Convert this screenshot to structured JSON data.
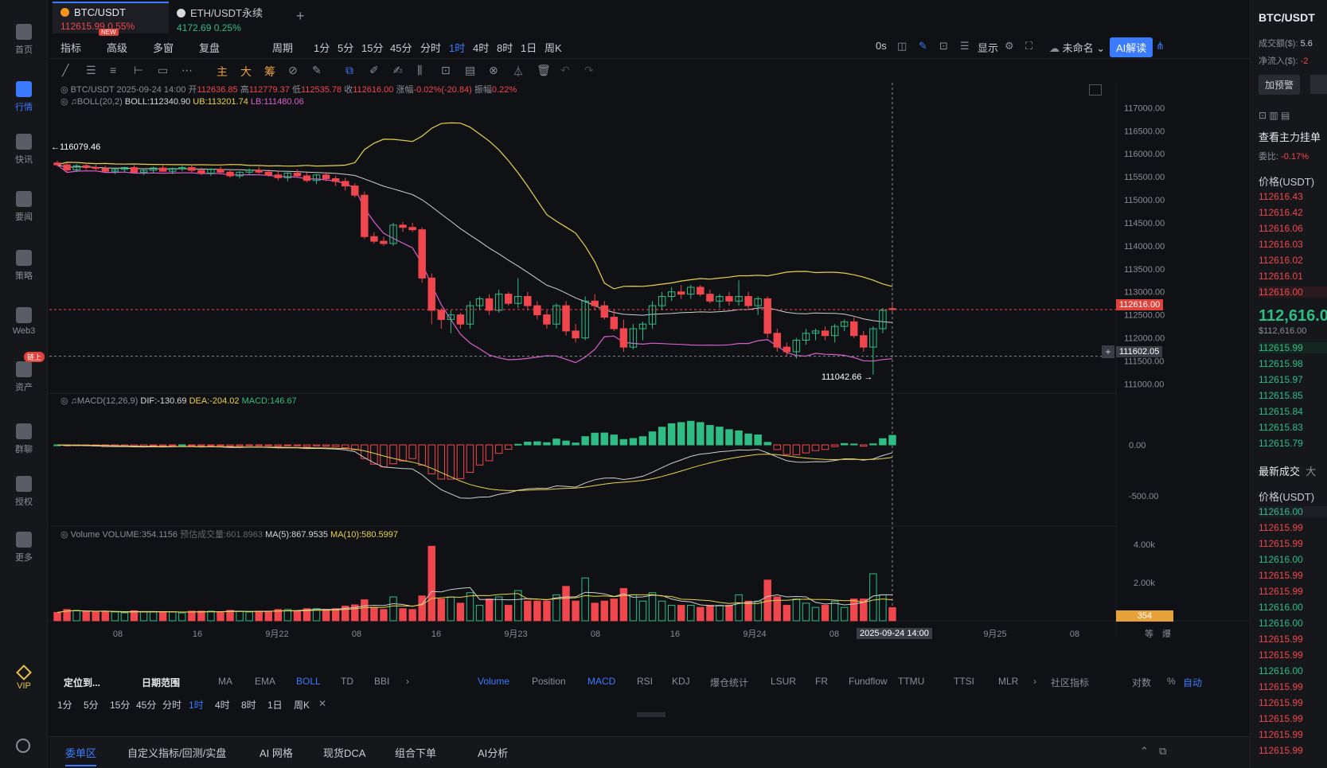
{
  "leftnav": [
    {
      "label": "首页",
      "icon": "chart-circle-icon"
    },
    {
      "label": "行情",
      "icon": "bar-chart-icon",
      "active": true
    },
    {
      "label": "快讯",
      "icon": "news-icon"
    },
    {
      "label": "要闻",
      "icon": "document-icon"
    },
    {
      "label": "策略",
      "icon": "robot-icon"
    },
    {
      "label": "Web3",
      "icon": "web3-icon"
    },
    {
      "label": "资产",
      "icon": "wallet-icon",
      "badge": "链上"
    },
    {
      "label": "群聊",
      "icon": "chat-icon"
    },
    {
      "label": "授权",
      "icon": "key-icon"
    },
    {
      "label": "更多",
      "icon": "grid-icon"
    }
  ],
  "vip_label": "VIP",
  "tabs": [
    {
      "name": "BTC/USDT",
      "price": "112615.99",
      "change": "0.55%",
      "badge": "NEW"
    },
    {
      "name": "ETH/USDT永续",
      "price": "4172.69",
      "change": "0.25%"
    }
  ],
  "toolbar1": [
    "指标",
    "高级",
    "多窗",
    "复盘",
    "周期",
    "1分",
    "5分",
    "15分",
    "45分",
    "分时",
    "1时",
    "4时",
    "8时",
    "1日",
    "周K"
  ],
  "toolbar1_active": "1时",
  "toolbar1_right": {
    "delay": "0s",
    "display": "显示",
    "unnamed": "未命名",
    "ai": "AI解读"
  },
  "toolbar2": [
    "主",
    "大",
    "筹"
  ],
  "info": {
    "pair": "BTC/USDT",
    "datetime": "2025-09-24 14:00",
    "open_label": "开",
    "open": "112636.85",
    "high_label": "高",
    "high": "112779.37",
    "low_label": "低",
    "low": "112535.78",
    "close_label": "收",
    "close": "112616.00",
    "chg_label": "涨幅",
    "chg": "-0.02%(-20.84)",
    "amp_label": "振幅",
    "amp": "0.22%",
    "boll_label": "BOLL(20,2)",
    "boll": "BOLL:112340.90",
    "ub": "UB:113201.74",
    "lb": "LB:111480.06",
    "macd_label": "MACD(12,26,9)",
    "dif": "DIF:-130.69",
    "dea": "DEA:-204.02",
    "macd": "MACD:146.67",
    "vol_label": "Volume",
    "vol": "VOLUME:354.1156",
    "vol_est": "预估成交量:601.8963",
    "ma5": "MA(5):867.9535",
    "ma10": "MA(10):580.5997"
  },
  "markers": {
    "high": "116079.46",
    "low": "111042.66",
    "last_price": "112616.00",
    "cross_price": "111602.05",
    "vol_last": "354",
    "time_cursor": "2025-09-24 14:00"
  },
  "price_axis": [
    "117000.00",
    "116500.00",
    "116000.00",
    "115500.00",
    "115000.00",
    "114500.00",
    "114000.00",
    "113500.00",
    "113000.00",
    "112500.00",
    "112000.00",
    "111500.00",
    "111000.00"
  ],
  "macd_axis": [
    "0.00",
    "-500.00"
  ],
  "vol_axis": [
    "4.00k",
    "2.00k"
  ],
  "time_axis": [
    "08",
    "16",
    "9月22",
    "08",
    "16",
    "9月23",
    "08",
    "16",
    "9月24",
    "08",
    "9月25",
    "08"
  ],
  "time_axis_right": [
    "等",
    "爆"
  ],
  "chart_data": {
    "type": "candlestick",
    "interval": "1时",
    "ylim": [
      110800,
      117300
    ],
    "candles": [
      [
        115800,
        115850,
        115720,
        115760
      ],
      [
        115760,
        115800,
        115600,
        115650
      ],
      [
        115650,
        115780,
        115600,
        115740
      ],
      [
        115740,
        115800,
        115650,
        115700
      ],
      [
        115700,
        115760,
        115620,
        115680
      ],
      [
        115680,
        115740,
        115600,
        115620
      ],
      [
        115620,
        115700,
        115560,
        115660
      ],
      [
        115660,
        115720,
        115600,
        115700
      ],
      [
        115700,
        115750,
        115580,
        115600
      ],
      [
        115600,
        115680,
        115540,
        115640
      ],
      [
        115640,
        115720,
        115580,
        115690
      ],
      [
        115690,
        115750,
        115600,
        115620
      ],
      [
        115620,
        115700,
        115560,
        115680
      ],
      [
        115680,
        115740,
        115620,
        115700
      ],
      [
        115700,
        115760,
        115600,
        115640
      ],
      [
        115640,
        115700,
        115540,
        115580
      ],
      [
        115580,
        115680,
        115520,
        115660
      ],
      [
        115660,
        115720,
        115580,
        115600
      ],
      [
        115600,
        115660,
        115480,
        115520
      ],
      [
        115520,
        115620,
        115460,
        115600
      ],
      [
        115600,
        115680,
        115540,
        115640
      ],
      [
        115640,
        115720,
        115560,
        115600
      ],
      [
        115600,
        115660,
        115500,
        115540
      ],
      [
        115540,
        115620,
        115420,
        115480
      ],
      [
        115480,
        115600,
        115400,
        115580
      ],
      [
        115580,
        115660,
        115500,
        115520
      ],
      [
        115520,
        115600,
        115380,
        115420
      ],
      [
        115420,
        115560,
        115340,
        115540
      ],
      [
        115540,
        115600,
        115400,
        115460
      ],
      [
        115460,
        115520,
        115300,
        115400
      ],
      [
        115400,
        115480,
        115200,
        115300
      ],
      [
        115300,
        115360,
        115050,
        115100
      ],
      [
        115100,
        115180,
        114150,
        114200
      ],
      [
        114200,
        114300,
        114050,
        114100
      ],
      [
        114100,
        114200,
        114000,
        114050
      ],
      [
        114050,
        114500,
        114000,
        114450
      ],
      [
        114450,
        114520,
        114300,
        114400
      ],
      [
        114400,
        114500,
        114300,
        114350
      ],
      [
        114350,
        114400,
        113200,
        113300
      ],
      [
        113300,
        113400,
        112300,
        112600
      ],
      [
        112600,
        112650,
        112200,
        112400
      ],
      [
        112400,
        112600,
        112100,
        112500
      ],
      [
        112500,
        112550,
        112200,
        112300
      ],
      [
        112300,
        112800,
        112200,
        112700
      ],
      [
        112700,
        112900,
        112600,
        112850
      ],
      [
        112850,
        112950,
        112500,
        112600
      ],
      [
        112600,
        113050,
        112550,
        112950
      ],
      [
        112950,
        113000,
        112700,
        112750
      ],
      [
        112750,
        113300,
        112650,
        112900
      ],
      [
        112900,
        113000,
        112600,
        112700
      ],
      [
        112700,
        112800,
        112400,
        112500
      ],
      [
        112500,
        112600,
        112200,
        112300
      ],
      [
        112300,
        112750,
        112200,
        112700
      ],
      [
        112700,
        112800,
        112050,
        112150
      ],
      [
        112150,
        112300,
        111900,
        112000
      ],
      [
        112000,
        112900,
        111950,
        112800
      ],
      [
        112800,
        112950,
        112600,
        112700
      ],
      [
        112700,
        112800,
        112400,
        112450
      ],
      [
        112450,
        112600,
        112150,
        112200
      ],
      [
        112200,
        112400,
        111700,
        111800
      ],
      [
        111800,
        112300,
        111750,
        112200
      ],
      [
        112200,
        112350,
        111950,
        112300
      ],
      [
        112300,
        112800,
        112200,
        112700
      ],
      [
        112700,
        113000,
        112600,
        112900
      ],
      [
        112900,
        113100,
        112800,
        113000
      ],
      [
        113000,
        113150,
        112850,
        112950
      ],
      [
        112950,
        113150,
        112850,
        113100
      ],
      [
        113100,
        113150,
        112900,
        112950
      ],
      [
        112950,
        113050,
        112750,
        112800
      ],
      [
        112800,
        112950,
        112650,
        112900
      ],
      [
        112900,
        113000,
        112700,
        112800
      ],
      [
        112800,
        113250,
        112700,
        112900
      ],
      [
        112900,
        113000,
        112600,
        112700
      ],
      [
        112700,
        112900,
        112500,
        112850
      ],
      [
        112850,
        112900,
        112000,
        112100
      ],
      [
        112100,
        112200,
        111700,
        111800
      ],
      [
        111800,
        111900,
        111600,
        111700
      ],
      [
        111700,
        112000,
        111550,
        111950
      ],
      [
        111950,
        112200,
        111850,
        112100
      ],
      [
        112100,
        112200,
        111950,
        112150
      ],
      [
        112150,
        112250,
        111950,
        112050
      ],
      [
        112050,
        112300,
        111900,
        112250
      ],
      [
        112250,
        112400,
        112150,
        112350
      ],
      [
        112350,
        112450,
        112000,
        112050
      ],
      [
        112050,
        112150,
        111700,
        111800
      ],
      [
        111800,
        112250,
        111200,
        112200
      ],
      [
        112200,
        112650,
        112100,
        112600
      ],
      [
        112636.85,
        112779.37,
        112535.78,
        112616
      ]
    ]
  },
  "bottombar": [
    "定位到...",
    "日期范围",
    "MA",
    "EMA",
    "BOLL",
    "TD",
    "BBI",
    "Volume",
    "Position",
    "MACD",
    "RSI",
    "KDJ",
    "爆仓统计",
    "LSUR",
    "FR",
    "Fundflow",
    "TTMU",
    "TTSI",
    "MLR",
    "社区指标",
    "对数",
    "%",
    "自动"
  ],
  "bottombar_active": [
    "BOLL",
    "Volume",
    "MACD",
    "自动"
  ],
  "timebar": [
    "1分",
    "5分",
    "15分",
    "45分",
    "分时",
    "1时",
    "4时",
    "8时",
    "1日",
    "周K"
  ],
  "panel_tabs": [
    "委单区",
    "自定义指标/回测/实盘",
    "AI 网格",
    "现货DCA",
    "组合下单",
    "AI分析"
  ],
  "right": {
    "pair": "BTC/USDT",
    "turnover_label": "成交额($):",
    "turnover": "5.6",
    "netflow_label": "净流入($):",
    "netflow": "-2",
    "alert": "加预警",
    "main_orders": "查看主力挂单",
    "ratio_label": "委比:",
    "ratio": "-0.17%",
    "price_header": "价格(USDT)",
    "asks": [
      "112616.43",
      "112616.42",
      "112616.06",
      "112616.03",
      "112616.02",
      "112616.01",
      "112616.00"
    ],
    "last": "112,616.0",
    "last_usd": "$112,616.00",
    "bids": [
      "112615.99",
      "112615.98",
      "112615.97",
      "112615.85",
      "112615.84",
      "112615.83",
      "112615.79"
    ],
    "trades_title": "最新成交",
    "trades_extra": "大",
    "trades_header": "价格(USDT)",
    "trades": [
      [
        "112616.00",
        "g"
      ],
      [
        "112615.99",
        "r"
      ],
      [
        "112615.99",
        "r"
      ],
      [
        "112616.00",
        "g"
      ],
      [
        "112615.99",
        "r"
      ],
      [
        "112615.99",
        "r"
      ],
      [
        "112616.00",
        "g"
      ],
      [
        "112616.00",
        "g"
      ],
      [
        "112615.99",
        "r"
      ],
      [
        "112615.99",
        "r"
      ],
      [
        "112616.00",
        "g"
      ],
      [
        "112615.99",
        "r"
      ],
      [
        "112615.99",
        "r"
      ],
      [
        "112615.99",
        "r"
      ],
      [
        "112615.99",
        "r"
      ],
      [
        "112615.99",
        "r"
      ]
    ]
  }
}
